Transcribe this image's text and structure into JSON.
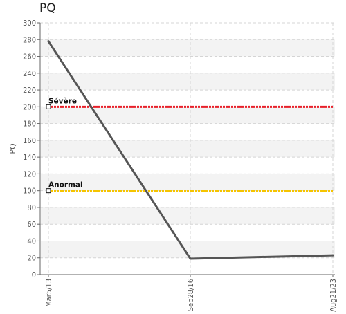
{
  "chart_data": {
    "type": "line",
    "title": "PQ",
    "ylabel": "PQ",
    "xlabel": "",
    "x": [
      "Mar5/13",
      "Sep28/16",
      "Aug21/23"
    ],
    "series": [
      {
        "values": [
          278,
          19,
          23
        ],
        "color": "#555555"
      }
    ],
    "reference_lines": [
      {
        "label": "Sévère",
        "value": 200,
        "color": "#e8202a"
      },
      {
        "label": "Anormal",
        "value": 100,
        "color": "#f5c400"
      }
    ],
    "ylim": [
      0,
      300
    ],
    "yticks": [
      0,
      20,
      40,
      60,
      80,
      100,
      120,
      140,
      160,
      180,
      200,
      220,
      240,
      260,
      280,
      300
    ],
    "grid": true,
    "legend": "none"
  }
}
